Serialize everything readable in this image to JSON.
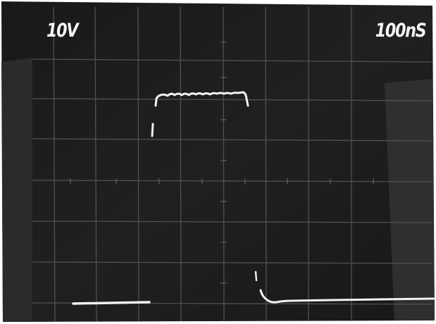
{
  "scope": {
    "volts_per_div": "10V",
    "time_per_div": "100nS"
  },
  "colors": {
    "screen": "#1e1e1e",
    "grid": "#565656",
    "trace": "#f2f2f2"
  }
}
